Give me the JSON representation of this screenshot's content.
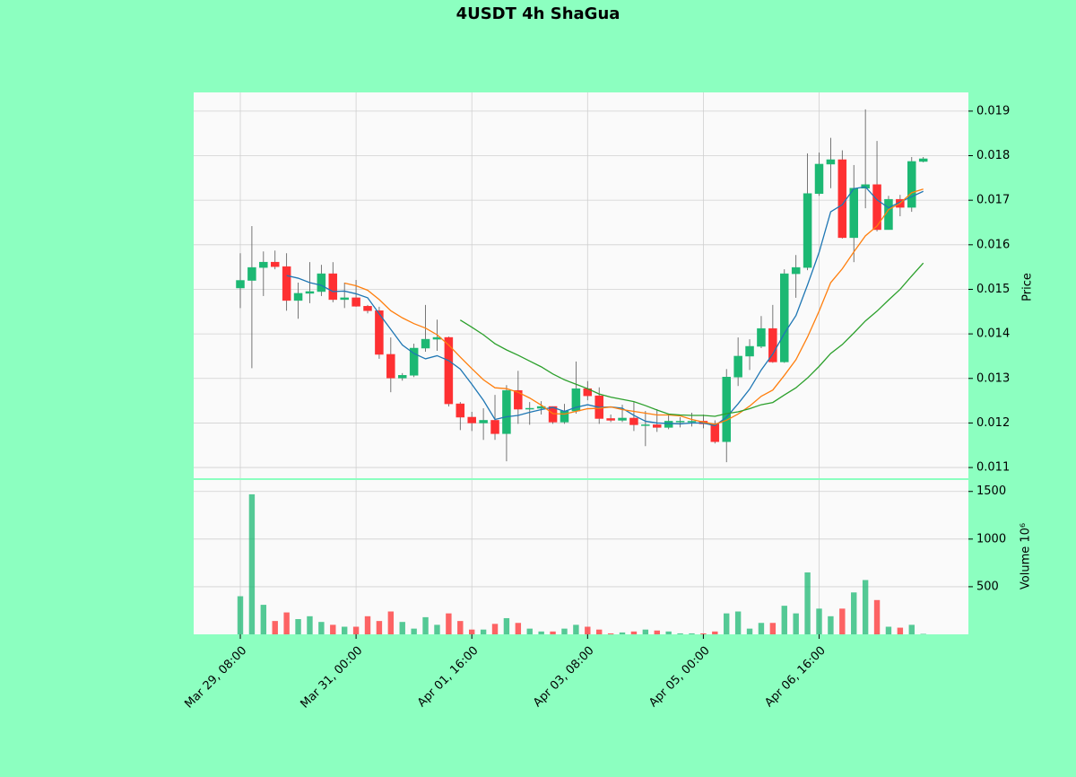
{
  "chart_data": {
    "type": "candlestick",
    "title": "4USDT 4h ShaGua",
    "price_label": "Price",
    "volume_label": "Volume  10⁶",
    "up_color": "#1cb873",
    "down_color": "#fe3032",
    "grid": true,
    "categories": [
      "Mar 29, 08:00",
      null,
      null,
      null,
      null,
      null,
      null,
      null,
      null,
      null,
      "Mar 31, 00:00",
      null,
      null,
      null,
      null,
      null,
      null,
      null,
      null,
      null,
      "Apr 01, 16:00",
      null,
      null,
      null,
      null,
      null,
      null,
      null,
      null,
      null,
      "Apr 03, 08:00",
      null,
      null,
      null,
      null,
      null,
      null,
      null,
      null,
      null,
      "Apr 05, 00:00",
      null,
      null,
      null,
      null,
      null,
      null,
      null,
      null,
      null,
      "Apr 06, 16:00",
      null,
      null,
      null,
      null,
      null,
      null,
      null,
      null,
      null
    ],
    "open": [
      0.01503,
      0.0152,
      0.01549,
      0.01561,
      0.01551,
      0.01475,
      0.01491,
      0.01495,
      0.01535,
      0.01477,
      0.01481,
      0.01462,
      0.01452,
      0.01354,
      0.01301,
      0.01307,
      0.01368,
      0.01388,
      0.01392,
      0.01243,
      0.01213,
      0.012,
      0.01206,
      0.01176,
      0.01273,
      0.01231,
      0.01233,
      0.01237,
      0.01202,
      0.01227,
      0.01277,
      0.01261,
      0.0121,
      0.01206,
      0.01211,
      0.01196,
      0.01196,
      0.0119,
      0.01204,
      0.01204,
      0.01204,
      0.01198,
      0.01158,
      0.01303,
      0.0135,
      0.01372,
      0.01412,
      0.01337,
      0.01535,
      0.01549,
      0.01715,
      0.01781,
      0.01791,
      0.01616,
      0.01727,
      0.01735,
      0.01634,
      0.01702,
      0.01684,
      0.01787
    ],
    "high": [
      0.01581,
      0.01642,
      0.01585,
      0.01587,
      0.01581,
      0.01515,
      0.01561,
      0.01555,
      0.01561,
      0.01515,
      0.01521,
      0.01465,
      0.01461,
      0.01392,
      0.01312,
      0.01378,
      0.01465,
      0.01432,
      0.01394,
      0.01247,
      0.01225,
      0.01233,
      0.01263,
      0.01285,
      0.01317,
      0.01247,
      0.01249,
      0.01237,
      0.01243,
      0.01338,
      0.01294,
      0.0128,
      0.01219,
      0.01241,
      0.01247,
      0.01227,
      0.01231,
      0.01219,
      0.01213,
      0.01223,
      0.01219,
      0.01206,
      0.01321,
      0.01392,
      0.01388,
      0.0144,
      0.01465,
      0.01545,
      0.01577,
      0.01805,
      0.01807,
      0.0184,
      0.01812,
      0.01779,
      0.01904,
      0.01833,
      0.0171,
      0.01712,
      0.01797,
      0.01797
    ],
    "low": [
      0.01458,
      0.01323,
      0.01485,
      0.01545,
      0.01452,
      0.01434,
      0.01469,
      0.01485,
      0.01471,
      0.01458,
      0.01461,
      0.01446,
      0.01344,
      0.01269,
      0.01295,
      0.01303,
      0.0136,
      0.01362,
      0.01237,
      0.01184,
      0.01182,
      0.01162,
      0.01162,
      0.01114,
      0.01198,
      0.01196,
      0.01219,
      0.01198,
      0.01198,
      0.01221,
      0.01251,
      0.01198,
      0.01202,
      0.01202,
      0.01182,
      0.01148,
      0.0118,
      0.01186,
      0.0119,
      0.01192,
      0.01188,
      0.01154,
      0.01112,
      0.01283,
      0.01319,
      0.01368,
      0.01335,
      0.01335,
      0.01481,
      0.01543,
      0.0171,
      0.01727,
      0.01614,
      0.01561,
      0.01682,
      0.0163,
      0.01634,
      0.01664,
      0.01674,
      0.01785
    ],
    "close": [
      0.0152,
      0.01549,
      0.01561,
      0.01551,
      0.01475,
      0.01491,
      0.01495,
      0.01535,
      0.01477,
      0.01481,
      0.01462,
      0.01452,
      0.01354,
      0.01301,
      0.01307,
      0.01368,
      0.01388,
      0.01392,
      0.01243,
      0.01213,
      0.012,
      0.01206,
      0.01176,
      0.01273,
      0.01231,
      0.01233,
      0.01237,
      0.01202,
      0.01227,
      0.01277,
      0.01261,
      0.0121,
      0.01206,
      0.01211,
      0.01196,
      0.01196,
      0.0119,
      0.01204,
      0.01204,
      0.01204,
      0.01198,
      0.01158,
      0.01303,
      0.0135,
      0.01372,
      0.01412,
      0.01337,
      0.01535,
      0.01549,
      0.01715,
      0.01781,
      0.01791,
      0.01616,
      0.01727,
      0.01735,
      0.01634,
      0.01702,
      0.01684,
      0.01787,
      0.01793
    ],
    "volume": [
      400,
      1470,
      310,
      140,
      230,
      160,
      190,
      130,
      100,
      80,
      80,
      190,
      140,
      240,
      130,
      60,
      180,
      100,
      220,
      140,
      50,
      50,
      110,
      170,
      120,
      60,
      30,
      30,
      60,
      100,
      80,
      50,
      10,
      20,
      30,
      50,
      40,
      30,
      10,
      10,
      10,
      30,
      220,
      240,
      60,
      120,
      120,
      300,
      220,
      650,
      270,
      190,
      270,
      440,
      570,
      360,
      80,
      70,
      100,
      5
    ],
    "lines": [
      {
        "color": "#1f77b4",
        "values": [
          null,
          null,
          null,
          null,
          0.01531,
          0.01525,
          0.01515,
          0.01509,
          0.01495,
          0.01496,
          0.0149,
          0.01481,
          0.01445,
          0.0141,
          0.01375,
          0.01356,
          0.01344,
          0.01351,
          0.0134,
          0.01321,
          0.01287,
          0.01251,
          0.01208,
          0.01214,
          0.01217,
          0.01224,
          0.0123,
          0.01235,
          0.01226,
          0.01235,
          0.01241,
          0.01235,
          0.01236,
          0.01233,
          0.01217,
          0.01204,
          0.012,
          0.01199,
          0.01198,
          0.012,
          0.012,
          0.01194,
          0.01213,
          0.01243,
          0.01276,
          0.01319,
          0.01355,
          0.01401,
          0.01441,
          0.0151,
          0.01583,
          0.01674,
          0.0169,
          0.01726,
          0.0173,
          0.01701,
          0.01683,
          0.01696,
          0.01708,
          0.0172
        ]
      },
      {
        "color": "#ff7f0e",
        "values": [
          null,
          null,
          null,
          null,
          null,
          null,
          null,
          null,
          null,
          0.01514,
          0.01508,
          0.01498,
          0.01477,
          0.01452,
          0.01436,
          0.01423,
          0.01413,
          0.01398,
          0.01375,
          0.01348,
          0.01322,
          0.01297,
          0.01279,
          0.01277,
          0.01269,
          0.01256,
          0.0124,
          0.01221,
          0.0122,
          0.01226,
          0.01232,
          0.01233,
          0.01236,
          0.0123,
          0.01226,
          0.01222,
          0.01218,
          0.01218,
          0.01216,
          0.01208,
          0.01202,
          0.01197,
          0.01206,
          0.0122,
          0.01238,
          0.0126,
          0.01274,
          0.01307,
          0.01342,
          0.01393,
          0.01451,
          0.01515,
          0.01546,
          0.01584,
          0.0162,
          0.01642,
          0.01679,
          0.01693,
          0.01717,
          0.01725
        ]
      },
      {
        "color": "#2ca02c",
        "values": [
          null,
          null,
          null,
          null,
          null,
          null,
          null,
          null,
          null,
          null,
          null,
          null,
          null,
          null,
          null,
          null,
          null,
          null,
          null,
          0.01431,
          0.01415,
          0.01398,
          0.01378,
          0.01364,
          0.01352,
          0.01339,
          0.01326,
          0.0131,
          0.01297,
          0.01287,
          0.01277,
          0.01265,
          0.01258,
          0.01253,
          0.01248,
          0.01239,
          0.01229,
          0.0122,
          0.01218,
          0.01217,
          0.01217,
          0.01215,
          0.01221,
          0.01225,
          0.01232,
          0.01241,
          0.01246,
          0.01263,
          0.01279,
          0.01301,
          0.01327,
          0.01356,
          0.01376,
          0.01402,
          0.01429,
          0.01451,
          0.01476,
          0.015,
          0.0153,
          0.01559
        ]
      }
    ],
    "ylim": [
      0.01076,
      0.01942
    ],
    "yticks": [
      0.011,
      0.012,
      0.013,
      0.014,
      0.015,
      0.016,
      0.017,
      0.018,
      0.019
    ],
    "volume_ylim": [
      0,
      1620
    ],
    "volume_ticks": [
      500,
      1000,
      1500
    ]
  }
}
